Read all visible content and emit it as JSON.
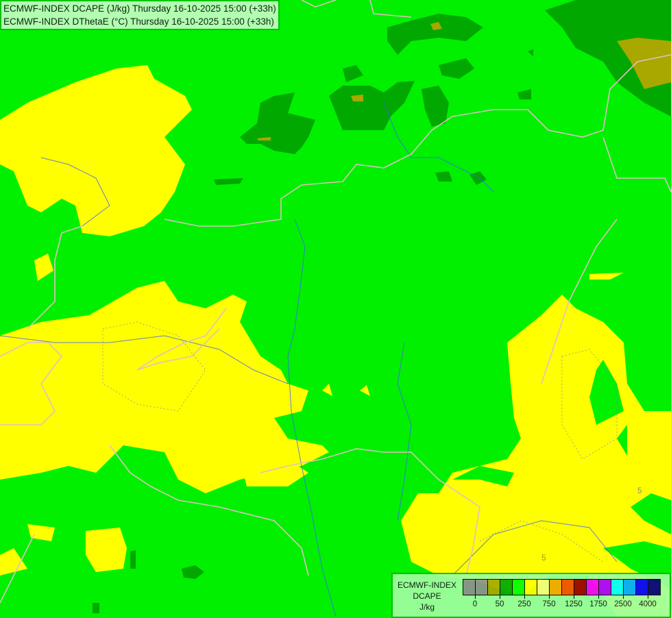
{
  "header": {
    "line1": "ECMWF-INDEX DCAPE (J/kg) Thursday 16-10-2025 15:00 (+33h)",
    "line2": "ECMWF-INDEX DThetaE (°C) Thursday 16-10-2025 15:00 (+33h)"
  },
  "legend": {
    "title_lines": [
      "ECMWF-INDEX",
      "DCAPE",
      "J/kg"
    ],
    "colors": [
      "#909090",
      "#909090",
      "#a8a800",
      "#00a800",
      "#00ff00",
      "#ffff00",
      "#ffff80",
      "#ffa800",
      "#ff5000",
      "#a80000",
      "#ff00ff",
      "#a800ff",
      "#00ffff",
      "#00a8ff",
      "#0000ff",
      "#000080"
    ],
    "tick_labels": [
      "0",
      "50",
      "250",
      "750",
      "1250",
      "1750",
      "2500",
      "4000"
    ]
  },
  "map_colors": {
    "base_green": "#00f000",
    "yellow": "#ffff00",
    "dark_green": "#00a800",
    "olive": "#a8a800",
    "border": "#e0c0c0",
    "river": "#4060ff"
  },
  "contour_labels": [
    "5",
    "5"
  ]
}
